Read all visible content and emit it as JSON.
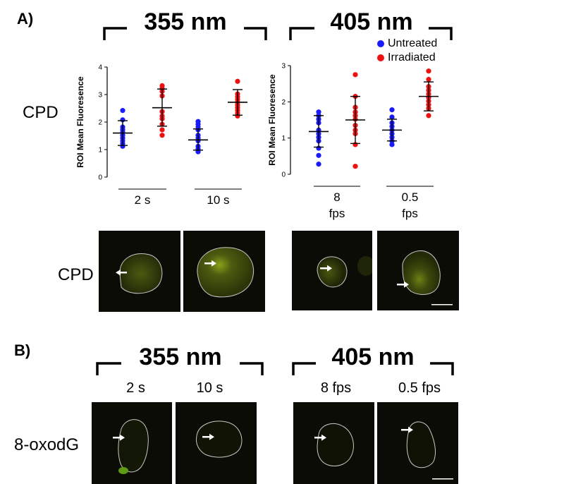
{
  "panels": {
    "a": {
      "label": "A)"
    },
    "b": {
      "label": "B)"
    }
  },
  "wavelengths": {
    "w355": "355 nm",
    "w405": "405 nm"
  },
  "rows": {
    "cpd": "CPD",
    "oxodg": "8-oxodG"
  },
  "legend": {
    "untreated": "Untreated",
    "irradiated": "Irradiated"
  },
  "colors": {
    "untreated": "#1a1aff",
    "irradiated": "#ee1111"
  },
  "panel_b_conditions": [
    "2 s",
    "10 s",
    "8 fps",
    "0.5 fps"
  ],
  "chart_data": [
    {
      "type": "scatter",
      "ylabel": "ROI Mean Fluoresence",
      "ylim": [
        0,
        4
      ],
      "yticks": [
        "0",
        "1",
        "2",
        "3",
        "4"
      ],
      "categories": [
        [
          "2 s"
        ],
        [
          "10 s"
        ]
      ],
      "series": [
        {
          "name": "Untreated",
          "category": 0,
          "points": [
            2.42,
            2.08,
            1.82,
            1.72,
            1.62,
            1.52,
            1.42,
            1.32,
            1.22,
            1.12
          ],
          "mean": 1.6,
          "sd_low": 1.15,
          "sd_high": 2.05
        },
        {
          "name": "Irradiated",
          "category": 0,
          "points": [
            3.32,
            3.22,
            3.12,
            2.95,
            2.38,
            2.22,
            2.12,
            1.92,
            1.72,
            1.52
          ],
          "mean": 2.52,
          "sd_low": 1.85,
          "sd_high": 3.2
        },
        {
          "name": "Untreated",
          "category": 1,
          "points": [
            2.02,
            1.92,
            1.82,
            1.72,
            1.52,
            1.42,
            1.32,
            1.12,
            1.02,
            0.92
          ],
          "mean": 1.35,
          "sd_low": 0.98,
          "sd_high": 1.75
        },
        {
          "name": "Irradiated",
          "category": 1,
          "points": [
            3.48,
            3.02,
            2.92,
            2.82,
            2.72,
            2.62,
            2.52,
            2.42,
            2.32,
            2.22
          ],
          "mean": 2.72,
          "sd_low": 2.25,
          "sd_high": 3.18
        }
      ]
    },
    {
      "type": "scatter",
      "ylabel": "ROI Mean Fluoresence",
      "ylim": [
        0,
        3
      ],
      "yticks": [
        "0",
        "1",
        "2",
        "3"
      ],
      "categories": [
        [
          "8",
          "fps"
        ],
        [
          "0.5",
          "fps"
        ]
      ],
      "series": [
        {
          "name": "Untreated",
          "category": 0,
          "points": [
            1.72,
            1.62,
            1.52,
            1.42,
            1.22,
            1.12,
            1.02,
            0.92,
            0.72,
            0.52,
            0.28
          ],
          "mean": 1.18,
          "sd_low": 0.75,
          "sd_high": 1.62
        },
        {
          "name": "Irradiated",
          "category": 0,
          "points": [
            2.75,
            2.15,
            1.85,
            1.72,
            1.62,
            1.52,
            1.35,
            1.22,
            1.12,
            0.82,
            0.22
          ],
          "mean": 1.5,
          "sd_low": 0.85,
          "sd_high": 2.15
        },
        {
          "name": "Untreated",
          "category": 1,
          "points": [
            1.78,
            1.58,
            1.42,
            1.32,
            1.22,
            1.12,
            1.02,
            0.92,
            0.82
          ],
          "mean": 1.22,
          "sd_low": 0.92,
          "sd_high": 1.52
        },
        {
          "name": "Irradiated",
          "category": 1,
          "points": [
            2.85,
            2.62,
            2.42,
            2.32,
            2.22,
            2.12,
            2.02,
            1.92,
            1.82,
            1.62
          ],
          "mean": 2.15,
          "sd_low": 1.75,
          "sd_high": 2.55
        }
      ]
    }
  ]
}
